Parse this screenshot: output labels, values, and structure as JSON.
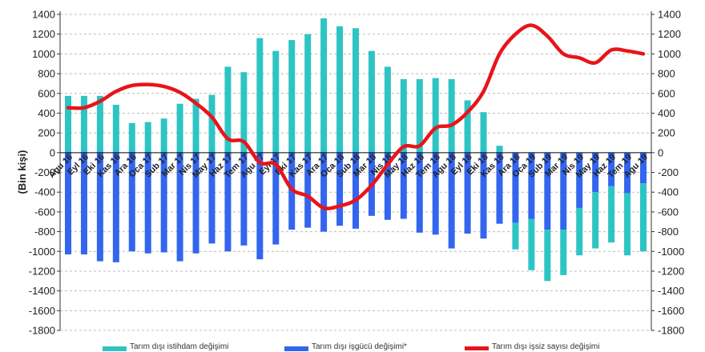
{
  "chart_data": {
    "type": "bar",
    "title": "",
    "ylabel": "(Bin kişi)",
    "xlabel": "",
    "ylim": [
      -1800,
      1400
    ],
    "y_ticks": [
      1400,
      1200,
      1000,
      800,
      600,
      400,
      200,
      0,
      -200,
      -400,
      -600,
      -800,
      -1000,
      -1200,
      -1400,
      -1600,
      -1800
    ],
    "y2_ticks": [
      1400,
      1200,
      1000,
      800,
      600,
      400,
      200,
      0,
      -200,
      -400,
      -600,
      -800,
      -1000,
      -1200,
      -1400,
      -1600,
      -1800
    ],
    "grid": true,
    "legend_position": "bottom",
    "categories": [
      "Agu 16",
      "Eyl 16",
      "Eki 16",
      "Kas 16",
      "Ara 16",
      "Oca 17",
      "Sub 17",
      "Mar 17",
      "Nis 17",
      "May 17",
      "Haz 17",
      "Tem 17",
      "Agu 17",
      "Eyl 17",
      "Eki 17",
      "Kas 17",
      "Ara 17",
      "Oca 18",
      "Sub 18",
      "Mar 18",
      "Nis 18",
      "May 18",
      "Haz 18",
      "Tem 18",
      "Agu 18",
      "Eyl 18",
      "Eki 18",
      "Kas 18",
      "Ara 18",
      "Oca 19",
      "Sub 19",
      "Mar 19",
      "Nis 19",
      "May 19",
      "Haz 19",
      "Tem 19",
      "Agu 19"
    ],
    "series": [
      {
        "name": "Tarım dışı istihdam değişimi",
        "type": "bar",
        "color": "#2EC4C4",
        "values": [
          575,
          575,
          575,
          485,
          300,
          310,
          345,
          495,
          545,
          585,
          870,
          815,
          1160,
          1030,
          1140,
          1200,
          1360,
          1280,
          1260,
          1030,
          870,
          745,
          745,
          755,
          745,
          530,
          410,
          70,
          -980,
          -1190,
          -1300,
          -1240,
          -1040,
          -970,
          -910,
          -1040,
          -1000
        ]
      },
      {
        "name": "Tarım dışı işgücü değişimi*",
        "type": "bar",
        "color": "#3366EE",
        "values": [
          -1030,
          -1030,
          -1100,
          -1110,
          -1000,
          -1020,
          -1010,
          -1100,
          -1020,
          -920,
          -1000,
          -940,
          -1080,
          -930,
          -780,
          -760,
          -800,
          -740,
          -770,
          -640,
          -680,
          -670,
          -810,
          -830,
          -970,
          -820,
          -870,
          -720,
          -710,
          -670,
          -780,
          -780,
          -560,
          -400,
          -340,
          -410,
          -310
        ]
      },
      {
        "name": "Tarım dışı işsiz sayısı değişimi",
        "type": "line",
        "color": "#E8141A",
        "values": [
          455,
          455,
          520,
          620,
          680,
          690,
          670,
          610,
          500,
          360,
          140,
          110,
          -100,
          -120,
          -370,
          -440,
          -560,
          -540,
          -480,
          -330,
          -120,
          60,
          70,
          250,
          280,
          410,
          620,
          1000,
          1200,
          1290,
          1180,
          1000,
          960,
          910,
          1040,
          1030,
          1000
        ]
      }
    ]
  },
  "legend": {
    "items": [
      {
        "label": "Tarım dışı istihdam değişimi",
        "color": "#2EC4C4"
      },
      {
        "label": "Tarım dışı işgücü değişimi*",
        "color": "#3366EE"
      },
      {
        "label": "Tarım dışı işsiz sayısı değişimi",
        "color": "#E8141A"
      }
    ]
  }
}
